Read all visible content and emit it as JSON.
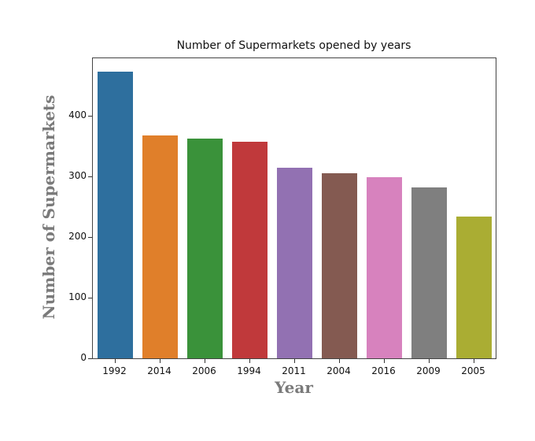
{
  "chart_data": {
    "type": "bar",
    "title": "Number of Supermarkets opened by years",
    "xlabel": "Year",
    "ylabel": "Number of Supermarkets",
    "categories": [
      "1992",
      "2014",
      "2006",
      "1994",
      "2011",
      "2004",
      "2016",
      "2009",
      "2005"
    ],
    "values": [
      473,
      367,
      362,
      357,
      314,
      305,
      299,
      282,
      234
    ],
    "colors": [
      "#2e6f9e",
      "#e07f2a",
      "#3a923a",
      "#c0393b",
      "#9271b2",
      "#845a51",
      "#d782be",
      "#7f7f7f",
      "#aaad33"
    ],
    "yticks": [
      0,
      100,
      200,
      300,
      400
    ],
    "ylim": [
      0,
      497
    ],
    "grid": false,
    "legend": null
  }
}
